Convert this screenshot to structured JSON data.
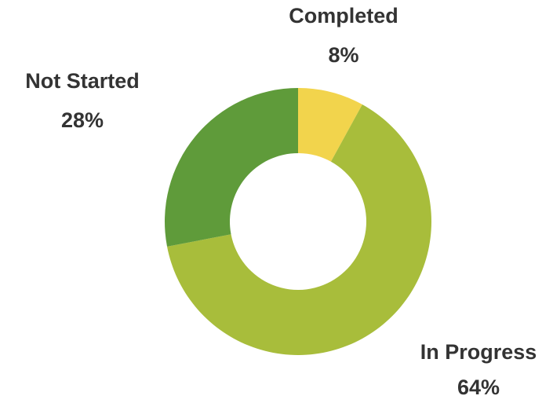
{
  "chart_data": {
    "type": "donut",
    "categories": [
      "Completed",
      "In Progress",
      "Not Started"
    ],
    "values": [
      8,
      64,
      28
    ],
    "value_labels": [
      "8%",
      "64%",
      "28%"
    ],
    "colors": [
      "#f2d44c",
      "#a8bd3b",
      "#5f9b3a"
    ]
  }
}
